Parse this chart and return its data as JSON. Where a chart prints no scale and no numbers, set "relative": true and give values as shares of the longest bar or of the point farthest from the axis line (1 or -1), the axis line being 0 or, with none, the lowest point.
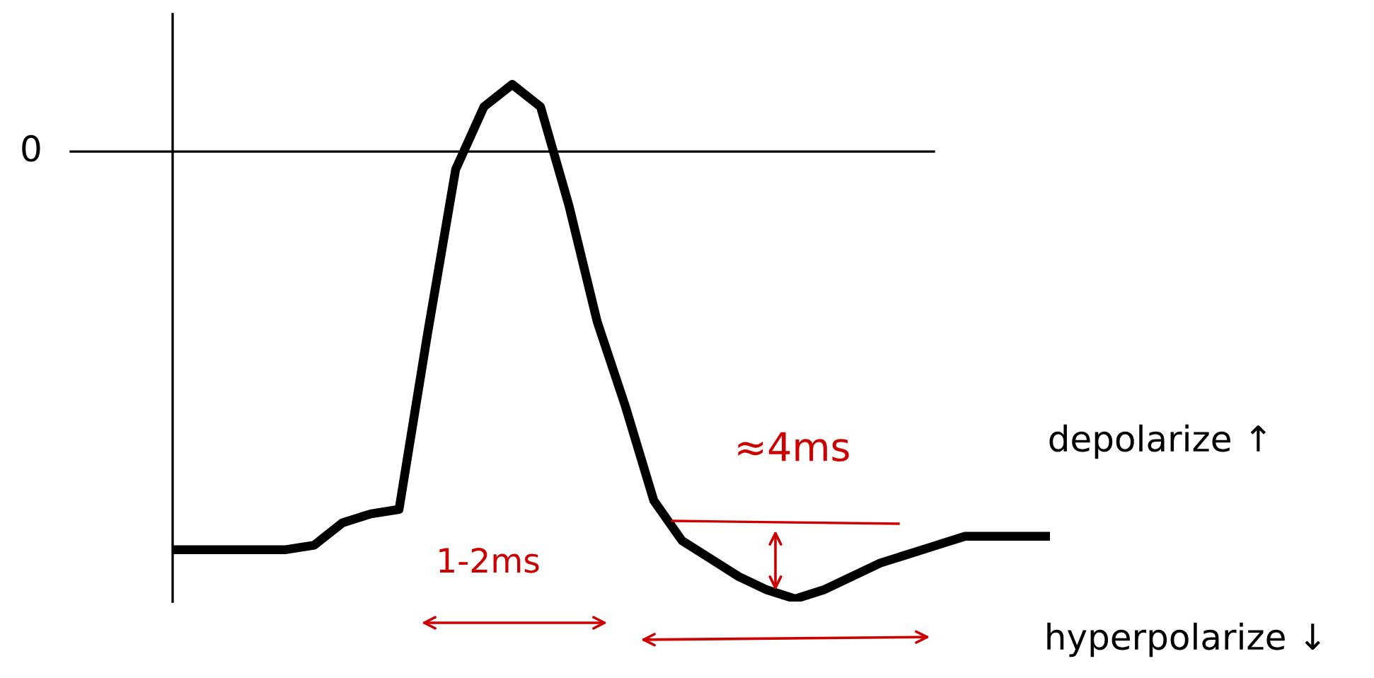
{
  "chart_data": {
    "type": "line",
    "relative": true,
    "color": "#000000",
    "line_style": "solid",
    "marker": "none",
    "legend": false,
    "categories": [
      null,
      null,
      null,
      null,
      null,
      null,
      null,
      null,
      null,
      null,
      null,
      null,
      null,
      null,
      null,
      null,
      null,
      null,
      null,
      null,
      null,
      null,
      null,
      null,
      null,
      null,
      null,
      null,
      null,
      null,
      null,
      null
    ],
    "values": [
      -0.89,
      -0.89,
      -0.89,
      -0.89,
      -0.89,
      -0.88,
      -0.83,
      -0.81,
      -0.8,
      -0.41,
      -0.04,
      0.1,
      0.15,
      0.1,
      -0.12,
      -0.38,
      -0.57,
      -0.78,
      -0.87,
      -0.91,
      -0.95,
      -0.98,
      -1.0,
      -0.98,
      -0.95,
      -0.92,
      -0.9,
      -0.88,
      -0.86,
      -0.86,
      -0.86,
      -0.86
    ],
    "ref_lines": [
      {
        "axis": "y",
        "value": 0,
        "label": "0",
        "color": "#000000"
      }
    ],
    "annotations": [
      "≈4ms",
      "1-2ms",
      "depolarize ↑",
      "hyperpolarize ↓"
    ]
  }
}
